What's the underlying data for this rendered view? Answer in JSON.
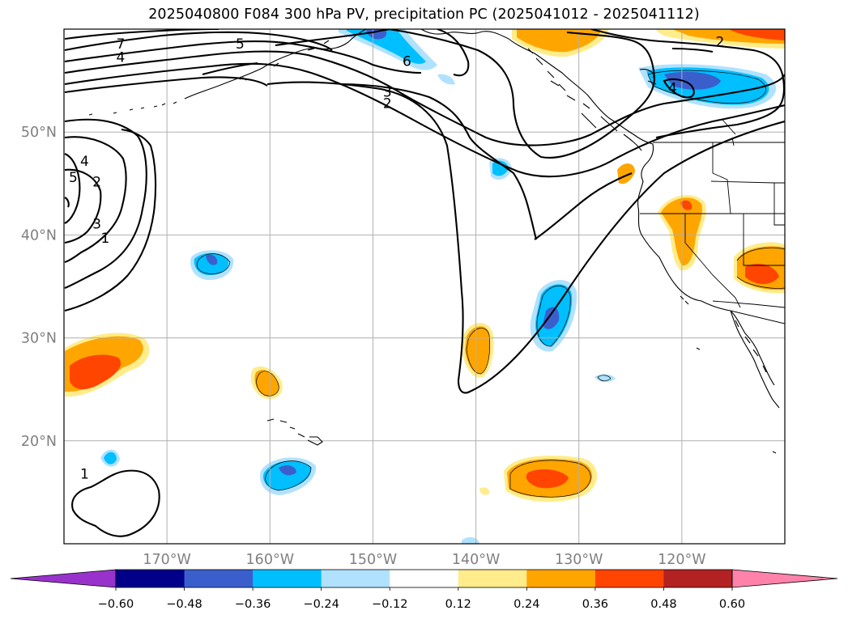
{
  "chart_data": {
    "type": "heatmap",
    "title": "2025040800 F084 300 hPa PV, precipitation PC (2025041012 - 2025041112)",
    "xlabel": "",
    "ylabel": "",
    "xlim": [
      -180,
      -110
    ],
    "ylim": [
      10,
      60
    ],
    "x_ticks": [
      -170,
      -160,
      -150,
      -140,
      -130,
      -120
    ],
    "x_tick_labels": [
      "170°W",
      "160°W",
      "150°W",
      "140°W",
      "130°W",
      "120°W"
    ],
    "y_ticks": [
      20,
      30,
      40,
      50
    ],
    "y_tick_labels": [
      "20°N",
      "30°N",
      "40°N",
      "50°N"
    ],
    "grid": true,
    "colorbar": {
      "orientation": "horizontal",
      "extend": "both",
      "boundaries": [
        -0.6,
        -0.48,
        -0.36,
        -0.24,
        -0.12,
        0.12,
        0.24,
        0.36,
        0.48,
        0.6
      ],
      "tick_labels": [
        "−0.60",
        "−0.48",
        "−0.36",
        "−0.24",
        "−0.12",
        "0.12",
        "0.24",
        "0.36",
        "0.48",
        "0.60"
      ],
      "colors": [
        "#9932cc",
        "#00008b",
        "#3a5fcd",
        "#00bfff",
        "#b0e2ff",
        "#ffffff",
        "#ffec8b",
        "#ffa500",
        "#ff4500",
        "#b22222",
        "#ff82ab"
      ]
    },
    "contour_labels": [
      {
        "value": "7",
        "lon": -174.5,
        "lat": 58.6
      },
      {
        "value": "5",
        "lon": -162.9,
        "lat": 58.6
      },
      {
        "value": "4",
        "lon": -174.5,
        "lat": 57.3
      },
      {
        "value": "6",
        "lon": -146.7,
        "lat": 56.9
      },
      {
        "value": "3",
        "lon": -148.6,
        "lat": 53.9
      },
      {
        "value": "2",
        "lon": -148.6,
        "lat": 52.8
      },
      {
        "value": "2",
        "lon": -116.3,
        "lat": 58.8
      },
      {
        "value": "4",
        "lon": -120.9,
        "lat": 54.3
      },
      {
        "value": "4",
        "lon": -178.0,
        "lat": 47.2
      },
      {
        "value": "5",
        "lon": -179.1,
        "lat": 45.6
      },
      {
        "value": "2",
        "lon": -176.8,
        "lat": 45.2
      },
      {
        "value": "3",
        "lon": -176.8,
        "lat": 41.1
      },
      {
        "value": "1",
        "lon": -176.0,
        "lat": 39.7
      },
      {
        "value": "1",
        "lon": -178.0,
        "lat": 16.8
      }
    ],
    "precip_regions": [
      {
        "value": 0.4,
        "label": "subtropical rain band near 28°N 175°W"
      },
      {
        "value": 0.3,
        "label": "25°N 161°W"
      },
      {
        "value": 0.3,
        "label": "28°N 140°W"
      },
      {
        "value": -0.4,
        "label": "37°N 165°W"
      },
      {
        "value": -0.4,
        "label": "32°N 132°W"
      },
      {
        "value": -0.4,
        "label": "17°N 160°W"
      },
      {
        "value": 0.4,
        "label": "16°N 131°W"
      },
      {
        "value": 0.4,
        "label": "42°N 120°W"
      },
      {
        "value": 0.4,
        "label": "36°N 113°W"
      },
      {
        "value": -0.4,
        "label": "55°N 120°W"
      },
      {
        "value": 0.35,
        "label": "58°N 132°W"
      }
    ]
  }
}
